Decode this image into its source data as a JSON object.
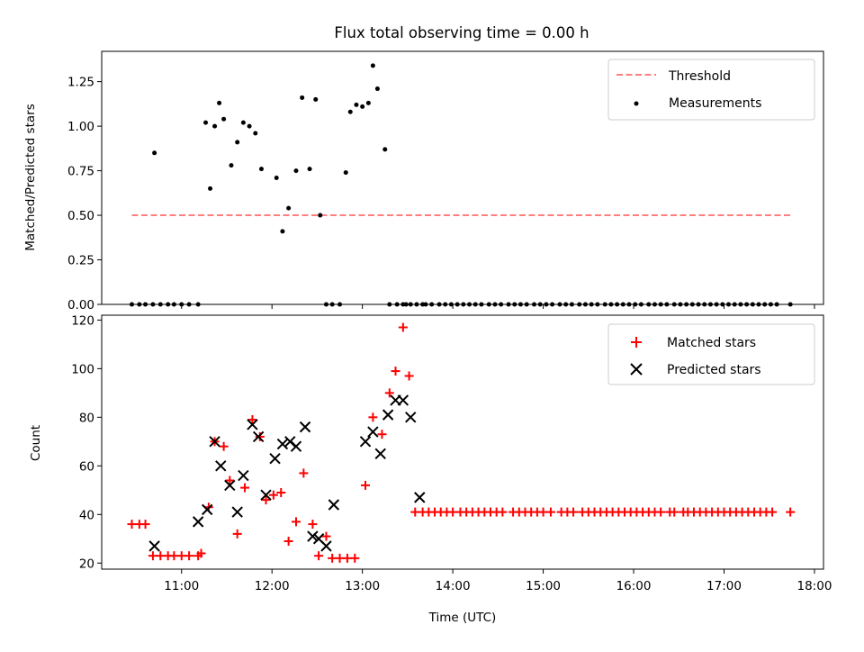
{
  "title": "Flux total observing time = 0.00 h",
  "chart_data": [
    {
      "type": "scatter",
      "panel": "top",
      "xlabel": "",
      "ylabel": "Matched/Predicted stars",
      "xlim": [
        "10:07",
        "18:06"
      ],
      "ylim": [
        0,
        1.42
      ],
      "yticks": [
        0.0,
        0.25,
        0.5,
        0.75,
        1.0,
        1.25
      ],
      "ytick_labels": [
        "0.00",
        "0.25",
        "0.50",
        "0.75",
        "1.00",
        "1.25"
      ],
      "legend": {
        "placement": "top-right",
        "entries": [
          "Threshold",
          "Measurements"
        ]
      },
      "series": [
        {
          "name": "Threshold",
          "style": "dashed-line",
          "color": "#ff7f7f",
          "x": [
            "10:27",
            "17:44"
          ],
          "y": [
            0.5,
            0.5
          ]
        },
        {
          "name": "Measurements",
          "style": "dot",
          "color": "#000000",
          "x": [
            "10:27",
            "10:32",
            "10:36",
            "10:41",
            "10:46",
            "10:51",
            "10:55",
            "11:00",
            "11:05",
            "11:11",
            "10:42",
            "11:19",
            "11:16",
            "11:22",
            "11:25",
            "11:28",
            "11:33",
            "11:37",
            "11:41",
            "11:45",
            "11:49",
            "11:53",
            "12:03",
            "12:07",
            "12:11",
            "12:16",
            "12:20",
            "12:25",
            "12:29",
            "12:32",
            "12:36",
            "12:40",
            "12:45",
            "12:49",
            "12:52",
            "12:56",
            "13:00",
            "13:04",
            "13:07",
            "13:10",
            "13:15",
            "13:18",
            "13:23",
            "13:27",
            "13:29",
            "13:32",
            "13:36",
            "13:40",
            "13:42",
            "13:46",
            "13:51",
            "13:55",
            "13:59",
            "14:03",
            "14:07",
            "14:11",
            "14:15",
            "14:19",
            "14:24",
            "14:28",
            "14:32",
            "14:37",
            "14:41",
            "14:45",
            "14:49",
            "14:54",
            "14:58",
            "15:02",
            "15:06",
            "15:11",
            "15:15",
            "15:19",
            "15:24",
            "15:28",
            "15:32",
            "15:36",
            "15:41",
            "15:45",
            "15:49",
            "15:53",
            "15:57",
            "16:01",
            "16:05",
            "16:10",
            "16:14",
            "16:18",
            "16:22",
            "16:27",
            "16:31",
            "16:35",
            "16:39",
            "16:43",
            "16:47",
            "16:51",
            "16:55",
            "16:59",
            "17:03",
            "17:07",
            "17:11",
            "17:15",
            "17:19",
            "17:23",
            "17:27",
            "17:31",
            "17:35",
            "17:44"
          ],
          "y": [
            0,
            0,
            0,
            0,
            0,
            0,
            0,
            0,
            0,
            0,
            0.85,
            0.65,
            1.02,
            1.0,
            1.13,
            1.04,
            0.78,
            0.91,
            1.02,
            1.0,
            0.96,
            0.76,
            0.71,
            0.41,
            0.54,
            0.75,
            1.16,
            0.76,
            1.15,
            0.5,
            0,
            0,
            0,
            0.74,
            1.08,
            1.12,
            1.11,
            1.13,
            1.34,
            1.21,
            0.87,
            0,
            0,
            0,
            0,
            0,
            0,
            0,
            0,
            0,
            0,
            0,
            0,
            0,
            0,
            0,
            0,
            0,
            0,
            0,
            0,
            0,
            0,
            0,
            0,
            0,
            0,
            0,
            0,
            0,
            0,
            0,
            0,
            0,
            0,
            0,
            0,
            0,
            0,
            0,
            0,
            0,
            0,
            0,
            0,
            0,
            0,
            0,
            0,
            0,
            0,
            0,
            0,
            0,
            0,
            0,
            0,
            0,
            0,
            0,
            0,
            0,
            0,
            0,
            0,
            0
          ]
        }
      ]
    },
    {
      "type": "scatter",
      "panel": "bottom",
      "xlabel": "Time (UTC)",
      "ylabel": "Count",
      "xlim": [
        "10:07",
        "18:06"
      ],
      "ylim": [
        17.5,
        122
      ],
      "xticks": [
        "11:00",
        "12:00",
        "13:00",
        "14:00",
        "15:00",
        "16:00",
        "17:00",
        "18:00"
      ],
      "yticks": [
        20,
        40,
        60,
        80,
        100,
        120
      ],
      "ytick_labels": [
        "20",
        "40",
        "60",
        "80",
        "100",
        "120"
      ],
      "legend": {
        "placement": "top-right",
        "entries": [
          "Matched stars",
          "Predicted stars"
        ]
      },
      "series": [
        {
          "name": "Matched stars",
          "marker": "plus",
          "color": "#ff0000",
          "points": [
            [
              "10:27",
              36
            ],
            [
              "10:32",
              36
            ],
            [
              "10:36",
              36
            ],
            [
              "10:41",
              23
            ],
            [
              "10:46",
              23
            ],
            [
              "10:51",
              23
            ],
            [
              "10:55",
              23
            ],
            [
              "11:00",
              23
            ],
            [
              "11:05",
              23
            ],
            [
              "11:11",
              23
            ],
            [
              "11:13",
              24
            ],
            [
              "11:18",
              43
            ],
            [
              "11:22",
              70
            ],
            [
              "11:28",
              68
            ],
            [
              "11:32",
              54
            ],
            [
              "11:37",
              32
            ],
            [
              "11:42",
              51
            ],
            [
              "11:47",
              79
            ],
            [
              "11:52",
              72
            ],
            [
              "11:56",
              46
            ],
            [
              "12:01",
              48
            ],
            [
              "12:06",
              49
            ],
            [
              "12:11",
              29
            ],
            [
              "12:16",
              37
            ],
            [
              "12:21",
              57
            ],
            [
              "12:27",
              36
            ],
            [
              "12:31",
              23
            ],
            [
              "12:36",
              31
            ],
            [
              "12:40",
              22
            ],
            [
              "12:45",
              22
            ],
            [
              "12:50",
              22
            ],
            [
              "12:55",
              22
            ],
            [
              "13:02",
              52
            ],
            [
              "13:07",
              80
            ],
            [
              "13:13",
              73
            ],
            [
              "13:18",
              90
            ],
            [
              "13:22",
              99
            ],
            [
              "13:27",
              117
            ],
            [
              "13:31",
              97
            ],
            [
              "13:35",
              41
            ],
            [
              "13:40",
              41
            ],
            [
              "13:44",
              41
            ],
            [
              "13:48",
              41
            ],
            [
              "13:52",
              41
            ],
            [
              "13:56",
              41
            ],
            [
              "14:00",
              41
            ],
            [
              "14:05",
              41
            ],
            [
              "14:09",
              41
            ],
            [
              "14:13",
              41
            ],
            [
              "14:17",
              41
            ],
            [
              "14:21",
              41
            ],
            [
              "14:25",
              41
            ],
            [
              "14:29",
              41
            ],
            [
              "14:33",
              41
            ],
            [
              "14:40",
              41
            ],
            [
              "14:44",
              41
            ],
            [
              "14:48",
              41
            ],
            [
              "14:52",
              41
            ],
            [
              "14:56",
              41
            ],
            [
              "15:00",
              41
            ],
            [
              "15:05",
              41
            ],
            [
              "15:12",
              41
            ],
            [
              "15:16",
              41
            ],
            [
              "15:20",
              41
            ],
            [
              "15:26",
              41
            ],
            [
              "15:30",
              41
            ],
            [
              "15:34",
              41
            ],
            [
              "15:38",
              41
            ],
            [
              "15:42",
              41
            ],
            [
              "15:46",
              41
            ],
            [
              "15:50",
              41
            ],
            [
              "15:54",
              41
            ],
            [
              "15:58",
              41
            ],
            [
              "16:02",
              41
            ],
            [
              "16:06",
              41
            ],
            [
              "16:10",
              41
            ],
            [
              "16:14",
              41
            ],
            [
              "16:18",
              41
            ],
            [
              "16:24",
              41
            ],
            [
              "16:27",
              41
            ],
            [
              "16:33",
              41
            ],
            [
              "16:36",
              41
            ],
            [
              "16:40",
              41
            ],
            [
              "16:44",
              41
            ],
            [
              "16:48",
              41
            ],
            [
              "16:52",
              41
            ],
            [
              "16:56",
              41
            ],
            [
              "17:00",
              41
            ],
            [
              "17:04",
              41
            ],
            [
              "17:08",
              41
            ],
            [
              "17:12",
              41
            ],
            [
              "17:16",
              41
            ],
            [
              "17:20",
              41
            ],
            [
              "17:24",
              41
            ],
            [
              "17:28",
              41
            ],
            [
              "17:32",
              41
            ],
            [
              "17:44",
              41
            ]
          ]
        },
        {
          "name": "Predicted stars",
          "marker": "x",
          "color": "#000000",
          "points": [
            [
              "10:42",
              27
            ],
            [
              "11:11",
              37
            ],
            [
              "11:17",
              42
            ],
            [
              "11:22",
              70
            ],
            [
              "11:26",
              60
            ],
            [
              "11:32",
              52
            ],
            [
              "11:37",
              41
            ],
            [
              "11:41",
              56
            ],
            [
              "11:47",
              77
            ],
            [
              "11:51",
              72
            ],
            [
              "11:56",
              48
            ],
            [
              "12:02",
              63
            ],
            [
              "12:07",
              69
            ],
            [
              "12:12",
              70
            ],
            [
              "12:16",
              68
            ],
            [
              "12:22",
              76
            ],
            [
              "12:27",
              31
            ],
            [
              "12:31",
              30
            ],
            [
              "12:36",
              27
            ],
            [
              "12:41",
              44
            ],
            [
              "13:02",
              70
            ],
            [
              "13:07",
              74
            ],
            [
              "13:12",
              65
            ],
            [
              "13:17",
              81
            ],
            [
              "13:22",
              87
            ],
            [
              "13:27",
              87
            ],
            [
              "13:32",
              80
            ],
            [
              "13:38",
              47
            ]
          ]
        }
      ]
    }
  ]
}
